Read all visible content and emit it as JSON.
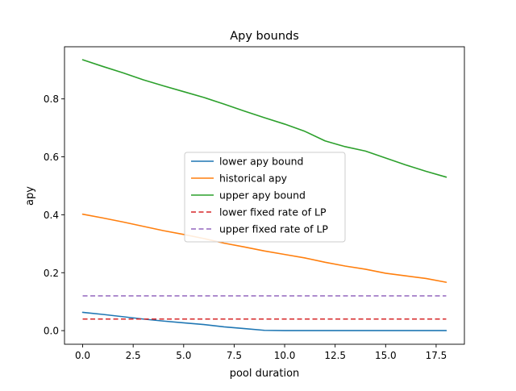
{
  "chart_data": {
    "type": "line",
    "title": "Apy bounds",
    "xlabel": "pool duration",
    "ylabel": "apy",
    "xlim": [
      -0.9,
      18.9
    ],
    "ylim": [
      -0.047,
      0.98
    ],
    "xticks": [
      0.0,
      2.5,
      5.0,
      7.5,
      10.0,
      12.5,
      15.0,
      17.5
    ],
    "xtick_labels": [
      "0.0",
      "2.5",
      "5.0",
      "7.5",
      "10.0",
      "12.5",
      "15.0",
      "17.5"
    ],
    "yticks": [
      0.0,
      0.2,
      0.4,
      0.6,
      0.8
    ],
    "ytick_labels": [
      "0.0",
      "0.2",
      "0.4",
      "0.6",
      "0.8"
    ],
    "grid": false,
    "legend_position": "center",
    "x": [
      0,
      1,
      2,
      3,
      4,
      5,
      6,
      7,
      8,
      9,
      10,
      11,
      12,
      13,
      14,
      15,
      16,
      17,
      18
    ],
    "series": [
      {
        "name": "lower apy bound",
        "color": "#1f77b4",
        "dash": "solid",
        "values": [
          0.063,
          0.056,
          0.048,
          0.04,
          0.033,
          0.027,
          0.021,
          0.013,
          0.007,
          0.001,
          0.0,
          0.0,
          0.0,
          0.0,
          0.0,
          0.0,
          0.0,
          0.0,
          0.0
        ]
      },
      {
        "name": "historical apy",
        "color": "#ff7f0e",
        "dash": "solid",
        "values": [
          0.402,
          0.389,
          0.375,
          0.36,
          0.345,
          0.332,
          0.318,
          0.302,
          0.289,
          0.275,
          0.263,
          0.251,
          0.236,
          0.223,
          0.212,
          0.198,
          0.189,
          0.18,
          0.167
        ]
      },
      {
        "name": "upper apy bound",
        "color": "#2ca02c",
        "dash": "solid",
        "values": [
          0.935,
          0.912,
          0.89,
          0.866,
          0.845,
          0.825,
          0.805,
          0.782,
          0.758,
          0.735,
          0.713,
          0.688,
          0.655,
          0.635,
          0.62,
          0.596,
          0.572,
          0.55,
          0.53
        ]
      },
      {
        "name": "lower fixed rate of LP",
        "color": "#d62728",
        "dash": "dashed",
        "values": [
          0.04,
          0.04,
          0.04,
          0.04,
          0.04,
          0.04,
          0.04,
          0.04,
          0.04,
          0.04,
          0.04,
          0.04,
          0.04,
          0.04,
          0.04,
          0.04,
          0.04,
          0.04,
          0.04
        ]
      },
      {
        "name": "upper fixed rate of LP",
        "color": "#9467bd",
        "dash": "dashed",
        "values": [
          0.12,
          0.12,
          0.12,
          0.12,
          0.12,
          0.12,
          0.12,
          0.12,
          0.12,
          0.12,
          0.12,
          0.12,
          0.12,
          0.12,
          0.12,
          0.12,
          0.12,
          0.12,
          0.12
        ]
      }
    ]
  }
}
